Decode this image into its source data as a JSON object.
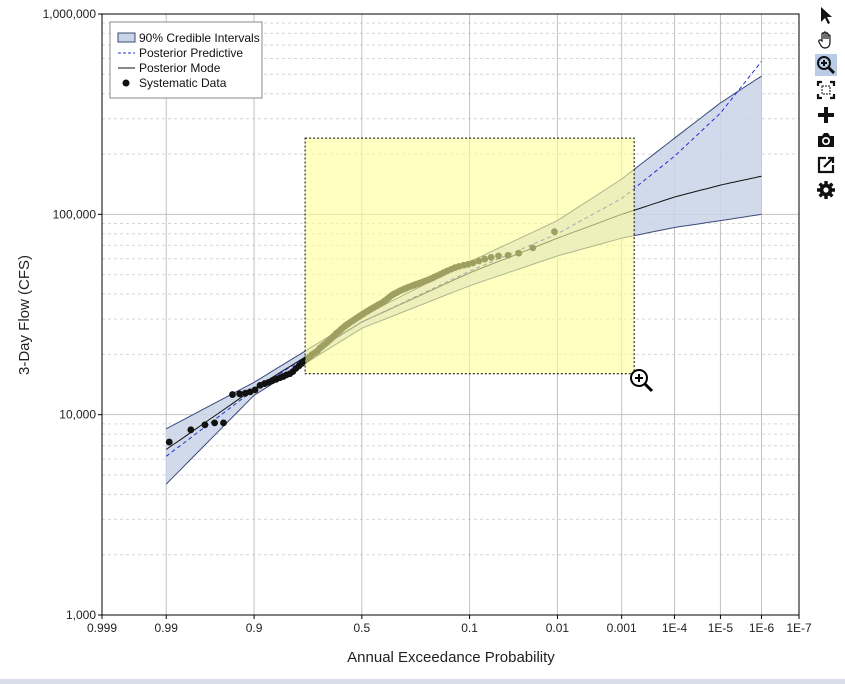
{
  "chart_data": {
    "type": "line",
    "xlabel": "Annual Exceedance Probability",
    "ylabel": "3-Day Flow (CFS)",
    "x_scale": "normal-probability (reversed)",
    "y_scale": "log",
    "ylim": [
      1000,
      1000000
    ],
    "xlim": [
      0.999,
      1e-07
    ],
    "grid": true,
    "legend_position": "top-left",
    "x_ticks": [
      {
        "p": 0.999,
        "label": "0.999"
      },
      {
        "p": 0.99,
        "label": "0.99"
      },
      {
        "p": 0.9,
        "label": "0.9"
      },
      {
        "p": 0.5,
        "label": "0.5"
      },
      {
        "p": 0.1,
        "label": "0.1"
      },
      {
        "p": 0.01,
        "label": "0.01"
      },
      {
        "p": 0.001,
        "label": "0.001"
      },
      {
        "p": 0.0001,
        "label": "1E-4"
      },
      {
        "p": 1e-05,
        "label": "1E-5"
      },
      {
        "p": 1e-06,
        "label": "1E-6"
      },
      {
        "p": 1e-07,
        "label": "1E-7"
      }
    ],
    "y_ticks": [
      {
        "v": 1000,
        "label": "1,000"
      },
      {
        "v": 10000,
        "label": "10,000"
      },
      {
        "v": 100000,
        "label": "100,000"
      },
      {
        "v": 1000000,
        "label": "1,000,000"
      }
    ],
    "legend": [
      {
        "label": "90% Credible Intervals",
        "kind": "band"
      },
      {
        "label": "Posterior Predictive",
        "kind": "dashed"
      },
      {
        "label": "Posterior Mode",
        "kind": "solid"
      },
      {
        "label": "Systematic Data",
        "kind": "marker"
      }
    ],
    "colors": {
      "band_fill": "#c9d4e6",
      "band_edge": "#3b4a7a",
      "predictive": "#1f2fd6",
      "mode": "#111111",
      "points": "#111111",
      "zoom_fill": "#ffff99",
      "zoom_edge": "#000000"
    },
    "series": [
      {
        "name": "90% Credible Intervals",
        "p": [
          0.99,
          0.9,
          0.5,
          0.1,
          0.01,
          0.001,
          0.0001,
          1e-05,
          1e-06
        ],
        "lower": [
          4500,
          12500,
          27000,
          44000,
          62000,
          76000,
          86000,
          93000,
          100000
        ],
        "upper": [
          8500,
          14500,
          31000,
          58000,
          93000,
          150000,
          240000,
          360000,
          490000
        ]
      },
      {
        "name": "Posterior Predictive",
        "p": [
          0.99,
          0.9,
          0.5,
          0.1,
          0.01,
          0.001,
          0.0001,
          1e-05,
          1e-06
        ],
        "values": [
          6200,
          13300,
          29000,
          52000,
          80000,
          120000,
          195000,
          320000,
          580000
        ]
      },
      {
        "name": "Posterior Mode",
        "p": [
          0.99,
          0.9,
          0.5,
          0.1,
          0.01,
          0.001,
          0.0001,
          1e-05,
          1e-06
        ],
        "values": [
          6700,
          13500,
          29000,
          51000,
          76000,
          100000,
          122000,
          140000,
          155000
        ]
      },
      {
        "name": "Systematic Data",
        "points": [
          [
            0.989,
            7300
          ],
          [
            0.979,
            8400
          ],
          [
            0.969,
            8900
          ],
          [
            0.96,
            9100
          ],
          [
            0.95,
            9100
          ],
          [
            0.938,
            12600
          ],
          [
            0.927,
            12700
          ],
          [
            0.917,
            12800
          ],
          [
            0.908,
            13000
          ],
          [
            0.898,
            13300
          ],
          [
            0.887,
            14000
          ],
          [
            0.876,
            14300
          ],
          [
            0.866,
            14500
          ],
          [
            0.856,
            14800
          ],
          [
            0.846,
            15000
          ],
          [
            0.835,
            15300
          ],
          [
            0.825,
            15500
          ],
          [
            0.815,
            15800
          ],
          [
            0.804,
            16000
          ],
          [
            0.794,
            16400
          ],
          [
            0.784,
            17000
          ],
          [
            0.773,
            17500
          ],
          [
            0.763,
            18000
          ],
          [
            0.753,
            18500
          ],
          [
            0.742,
            19000
          ],
          [
            0.732,
            19500
          ],
          [
            0.722,
            20000
          ],
          [
            0.711,
            20400
          ],
          [
            0.701,
            20800
          ],
          [
            0.691,
            21500
          ],
          [
            0.68,
            22000
          ],
          [
            0.67,
            22500
          ],
          [
            0.66,
            23000
          ],
          [
            0.649,
            23600
          ],
          [
            0.639,
            24200
          ],
          [
            0.629,
            24800
          ],
          [
            0.619,
            25500
          ],
          [
            0.608,
            26000
          ],
          [
            0.598,
            26600
          ],
          [
            0.588,
            27200
          ],
          [
            0.577,
            27800
          ],
          [
            0.567,
            28300
          ],
          [
            0.557,
            28800
          ],
          [
            0.546,
            29300
          ],
          [
            0.536,
            29800
          ],
          [
            0.526,
            30300
          ],
          [
            0.515,
            30800
          ],
          [
            0.505,
            31300
          ],
          [
            0.495,
            31800
          ],
          [
            0.485,
            32300
          ],
          [
            0.474,
            32800
          ],
          [
            0.464,
            33300
          ],
          [
            0.454,
            33800
          ],
          [
            0.443,
            34300
          ],
          [
            0.433,
            34800
          ],
          [
            0.423,
            35300
          ],
          [
            0.412,
            35800
          ],
          [
            0.402,
            36300
          ],
          [
            0.392,
            37000
          ],
          [
            0.381,
            37800
          ],
          [
            0.371,
            38600
          ],
          [
            0.361,
            39400
          ],
          [
            0.351,
            40000
          ],
          [
            0.34,
            40600
          ],
          [
            0.33,
            41200
          ],
          [
            0.32,
            41800
          ],
          [
            0.309,
            42300
          ],
          [
            0.299,
            42800
          ],
          [
            0.289,
            43300
          ],
          [
            0.278,
            43800
          ],
          [
            0.268,
            44300
          ],
          [
            0.258,
            44800
          ],
          [
            0.247,
            45300
          ],
          [
            0.237,
            45800
          ],
          [
            0.227,
            46400
          ],
          [
            0.216,
            47000
          ],
          [
            0.206,
            47700
          ],
          [
            0.196,
            48500
          ],
          [
            0.186,
            49300
          ],
          [
            0.175,
            50200
          ],
          [
            0.165,
            51200
          ],
          [
            0.155,
            52200
          ],
          [
            0.144,
            53200
          ],
          [
            0.134,
            54200
          ],
          [
            0.124,
            55000
          ],
          [
            0.113,
            55700
          ],
          [
            0.103,
            56300
          ],
          [
            0.093,
            57200
          ],
          [
            0.082,
            58500
          ],
          [
            0.072,
            59800
          ],
          [
            0.062,
            61000
          ],
          [
            0.052,
            62000
          ],
          [
            0.041,
            62500
          ],
          [
            0.031,
            64000
          ],
          [
            0.021,
            68000
          ],
          [
            0.011,
            82000
          ]
        ]
      }
    ],
    "zoom_selection": {
      "p_range": [
        0.75,
        0.0006
      ],
      "y_range": [
        16000,
        240000
      ]
    }
  },
  "toolbar": {
    "items": [
      {
        "name": "pointer-tool",
        "icon": "arrow-pointer-icon",
        "active": false
      },
      {
        "name": "pan-tool",
        "icon": "hand-icon",
        "active": false
      },
      {
        "name": "zoom-tool",
        "icon": "zoom-in-icon",
        "active": true
      },
      {
        "name": "zoom-extents-tool",
        "icon": "zoom-extents-icon",
        "active": false
      },
      {
        "name": "crosshair-tool",
        "icon": "plus-icon",
        "active": false
      },
      {
        "name": "screenshot-tool",
        "icon": "camera-icon",
        "active": false
      },
      {
        "name": "export-tool",
        "icon": "export-icon",
        "active": false
      },
      {
        "name": "settings-tool",
        "icon": "gear-icon",
        "active": false
      }
    ]
  }
}
